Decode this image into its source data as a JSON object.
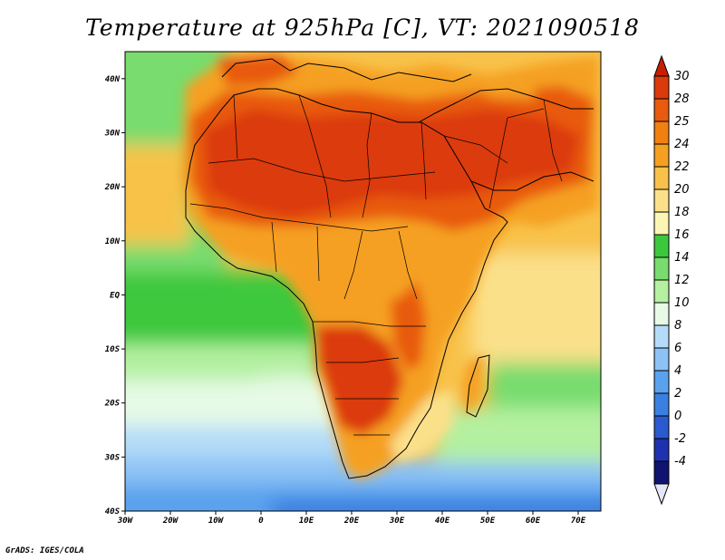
{
  "title": "Temperature at 925hPa [C], VT: 2021090518",
  "credit": "GrADS: IGES/COLA",
  "map": {
    "projection": "latlon",
    "lon_range": [
      -30,
      75
    ],
    "lat_range": [
      -40,
      45
    ],
    "lat_ticks": [
      {
        "value": 40,
        "label": "40N"
      },
      {
        "value": 30,
        "label": "30N"
      },
      {
        "value": 20,
        "label": "20N"
      },
      {
        "value": 10,
        "label": "10N"
      },
      {
        "value": 0,
        "label": "EQ"
      },
      {
        "value": -10,
        "label": "10S"
      },
      {
        "value": -20,
        "label": "20S"
      },
      {
        "value": -30,
        "label": "30S"
      },
      {
        "value": -40,
        "label": "40S"
      }
    ],
    "lon_ticks": [
      {
        "value": -30,
        "label": "30W"
      },
      {
        "value": -20,
        "label": "20W"
      },
      {
        "value": -10,
        "label": "10W"
      },
      {
        "value": 0,
        "label": "0"
      },
      {
        "value": 10,
        "label": "10E"
      },
      {
        "value": 20,
        "label": "20E"
      },
      {
        "value": 30,
        "label": "30E"
      },
      {
        "value": 40,
        "label": "40E"
      },
      {
        "value": 50,
        "label": "50E"
      },
      {
        "value": 60,
        "label": "60E"
      },
      {
        "value": 70,
        "label": "70E"
      }
    ]
  },
  "colorbar": {
    "levels": [
      {
        "label": "30",
        "color": "#dc3a0a"
      },
      {
        "label": "28",
        "color": "#e85a0e"
      },
      {
        "label": "25",
        "color": "#f08010"
      },
      {
        "label": "24",
        "color": "#f5a020"
      },
      {
        "label": "22",
        "color": "#f8c24a"
      },
      {
        "label": "20",
        "color": "#fbe08a"
      },
      {
        "label": "18",
        "color": "#fdf5b4"
      },
      {
        "label": "16",
        "color": "#3cc83c"
      },
      {
        "label": "14",
        "color": "#78dc6e"
      },
      {
        "label": "12",
        "color": "#b4f0a0"
      },
      {
        "label": "10",
        "color": "#e6fae6"
      },
      {
        "label": "8",
        "color": "#b4dcf8"
      },
      {
        "label": "6",
        "color": "#8cc2f5"
      },
      {
        "label": "4",
        "color": "#5aa2ee"
      },
      {
        "label": "2",
        "color": "#3a80e0"
      },
      {
        "label": "0",
        "color": "#2a5ad0"
      },
      {
        "label": "-2",
        "color": "#1e32b0"
      },
      {
        "label": "-4",
        "color": "#0e1470"
      }
    ],
    "top_color": "#c81e00",
    "bottom_color": "#e6e6fa"
  }
}
